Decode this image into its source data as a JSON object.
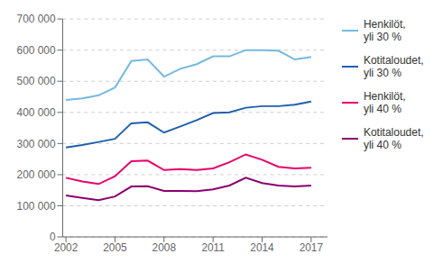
{
  "chart_data": {
    "type": "line",
    "x": [
      2002,
      2003,
      2004,
      2005,
      2006,
      2007,
      2008,
      2009,
      2010,
      2011,
      2012,
      2013,
      2014,
      2015,
      2016,
      2017
    ],
    "series": [
      {
        "name": "Henkilöt,\nyli 30 %",
        "color": "#74B9E0",
        "values": [
          440000,
          445000,
          455000,
          480000,
          565000,
          570000,
          515000,
          540000,
          555000,
          580000,
          580000,
          600000,
          600000,
          598000,
          570000,
          578000
        ]
      },
      {
        "name": "Kotitaloudet,\nyli 30 %",
        "color": "#1F5FAD",
        "values": [
          287000,
          295000,
          305000,
          315000,
          365000,
          368000,
          335000,
          355000,
          375000,
          398000,
          400000,
          415000,
          420000,
          420000,
          425000,
          435000
        ]
      },
      {
        "name": "Henkilöt,\nyli 40 %",
        "color": "#E8006B",
        "values": [
          190000,
          178000,
          170000,
          195000,
          243000,
          245000,
          215000,
          218000,
          215000,
          220000,
          240000,
          265000,
          248000,
          225000,
          220000,
          222000
        ]
      },
      {
        "name": "Kotitaloudet,\nyli 40 %",
        "color": "#8B0070",
        "values": [
          133000,
          125000,
          118000,
          130000,
          162000,
          163000,
          148000,
          148000,
          147000,
          153000,
          165000,
          190000,
          173000,
          165000,
          162000,
          165000
        ]
      }
    ],
    "xlim": [
      2001.8,
      2018
    ],
    "xticks": [
      2002,
      2005,
      2008,
      2011,
      2014,
      2017
    ],
    "ylim": [
      0,
      700000
    ],
    "yticks": [
      0,
      {
        "value": 100000,
        "label": "100 000"
      },
      {
        "value": 200000,
        "label": "200 000"
      },
      {
        "value": 300000,
        "label": "300 000"
      },
      {
        "value": 400000,
        "label": "400 000"
      },
      {
        "value": 500000,
        "label": "500 000"
      },
      {
        "value": 600000,
        "label": "600 000"
      },
      {
        "value": 700000,
        "label": "700 000"
      }
    ],
    "grid": true,
    "legend": "right"
  }
}
